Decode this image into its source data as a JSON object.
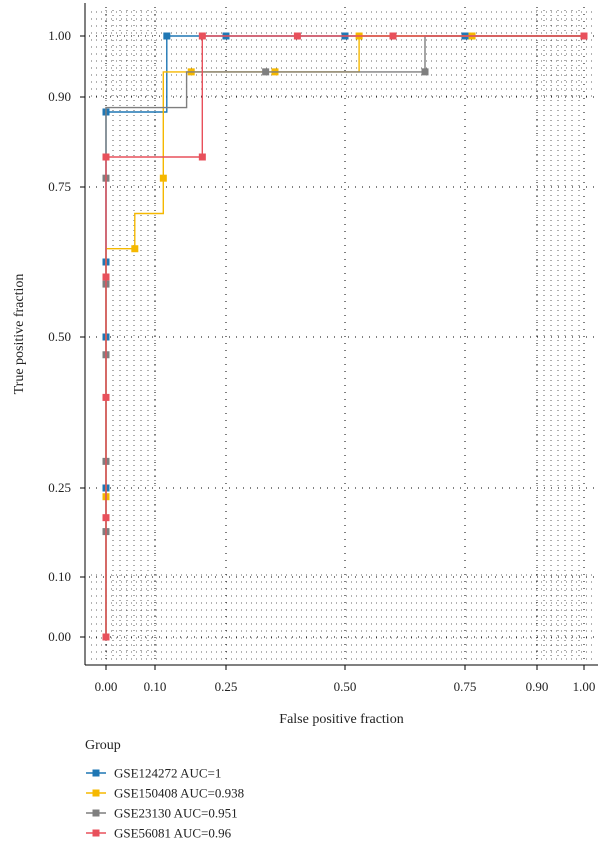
{
  "chart_data": {
    "type": "line",
    "xlabel": "False positive fraction",
    "ylabel": "True positive fraction",
    "xlim": [
      0,
      1
    ],
    "ylim": [
      0,
      1
    ],
    "x_ticks": [
      0.0,
      0.1,
      0.25,
      0.5,
      0.75,
      0.9,
      1.0
    ],
    "x_tick_labels": [
      "0.00",
      "0.10",
      "0.25",
      "0.50",
      "0.75",
      "0.90",
      "1.00"
    ],
    "y_ticks": [
      0.0,
      0.1,
      0.25,
      0.5,
      0.75,
      0.9,
      1.0
    ],
    "y_tick_labels": [
      "0.00",
      "0.10",
      "0.25",
      "0.50",
      "0.75",
      "0.90",
      "1.00"
    ],
    "grid": "dotted",
    "legend": {
      "title": "Group",
      "placement": "bottom-left",
      "labels": [
        "GSE124272 AUC=1",
        "GSE150408 AUC=0.938",
        "GSE23130 AUC=0.951",
        "GSE56081 AUC=0.96"
      ]
    },
    "series": [
      {
        "name": "GSE124272 AUC=1",
        "color": "#1f77b4",
        "x": [
          0,
          0,
          0,
          0,
          0,
          0.125,
          0.25,
          0.5,
          0.75,
          1.0
        ],
        "y": [
          0,
          0.25,
          0.5,
          0.625,
          0.875,
          1.0,
          1.0,
          1.0,
          1.0,
          1.0
        ]
      },
      {
        "name": "GSE150408 AUC=0.938",
        "color": "#f5b800",
        "x": [
          0,
          0,
          0.0588,
          0.1176,
          0.1765,
          0.3529,
          0.5294,
          0.7647,
          1.0
        ],
        "y": [
          0,
          0.2353,
          0.6471,
          0.7647,
          0.9412,
          0.9412,
          1.0,
          1.0,
          1.0
        ],
        "step_x": [
          0,
          0,
          0.0588,
          0.0588,
          0.1176,
          0.1176,
          0.1765,
          0.1765,
          0.5294,
          0.5294,
          1.0
        ],
        "step_y": [
          0,
          0.6471,
          0.6471,
          0.7059,
          0.7059,
          0.9412,
          0.9412,
          0.9412,
          0.9412,
          1.0,
          1.0
        ]
      },
      {
        "name": "GSE23130 AUC=0.951",
        "color": "#7f7f7f",
        "x": [
          0,
          0,
          0,
          0,
          0,
          0,
          0.3333,
          0.6667,
          1.0
        ],
        "y": [
          0,
          0.1765,
          0.2941,
          0.4706,
          0.5882,
          0.7647,
          0.9412,
          0.9412,
          1.0
        ],
        "step_x": [
          0,
          0,
          0.1667,
          0.1667,
          0.6667,
          0.6667,
          1.0
        ],
        "step_y": [
          0,
          0.8824,
          0.8824,
          0.9412,
          0.9412,
          1.0,
          1.0
        ]
      },
      {
        "name": "GSE56081 AUC=0.96",
        "color": "#e8505b",
        "x": [
          0,
          0,
          0,
          0,
          0,
          0,
          0.2,
          0.2,
          0.4,
          0.6,
          1.0
        ],
        "y": [
          0,
          0.2,
          0.4,
          0.6,
          0.8,
          0.8,
          0.8,
          1.0,
          1.0,
          1.0,
          1.0
        ],
        "step_x": [
          0,
          0,
          0.2,
          0.2,
          1.0
        ],
        "step_y": [
          0,
          0.8,
          0.8,
          1.0,
          1.0
        ]
      }
    ]
  }
}
